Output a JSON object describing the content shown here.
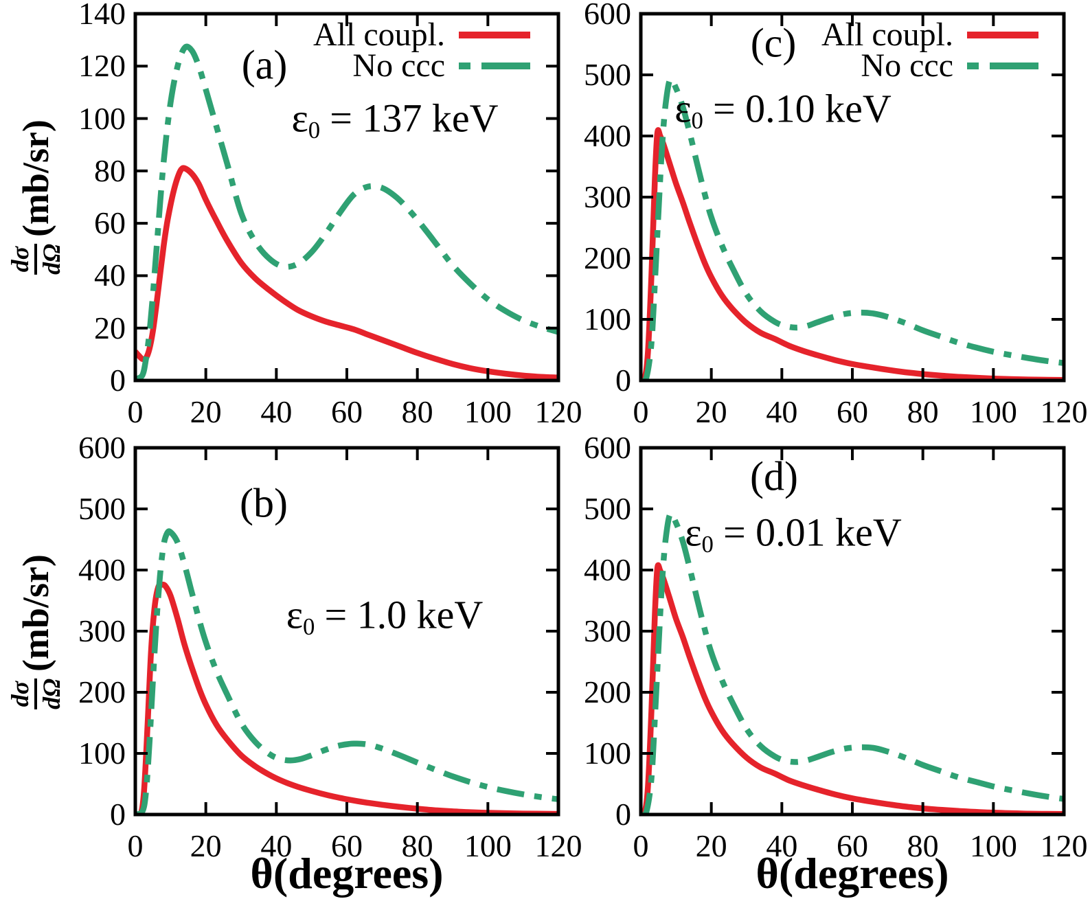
{
  "figure": {
    "background": "#ffffff",
    "axis_color": "#000000",
    "series_colors": {
      "all_coupl": "#e5232b",
      "no_ccc": "#2fa173"
    }
  },
  "legend": {
    "position": "top-right of panels a and c",
    "entries": [
      {
        "label": "All coupl.",
        "style": "solid",
        "color": "#e5232b"
      },
      {
        "label": "No ccc",
        "style": "dashdot",
        "color": "#2fa173"
      }
    ]
  },
  "axes": {
    "xlabel": "θ(degrees)",
    "ylabel": {
      "num": "dσ",
      "den": "dΩ",
      "units": "(mb/sr)"
    }
  },
  "chart_data": {
    "type": "line",
    "xlabel": "θ(degrees)",
    "ylabel": "dσ/dΩ (mb/sr)",
    "xlim": [
      0,
      120
    ],
    "xticks": [
      0,
      20,
      40,
      60,
      80,
      100,
      120
    ],
    "panels": {
      "a": {
        "label": "(a)",
        "annotation": {
          "symbol": "ε",
          "sub": "0",
          "rest": "= 137 keV"
        },
        "ylim": [
          0,
          140
        ],
        "yticks": [
          0,
          20,
          40,
          60,
          80,
          100,
          120,
          140
        ],
        "series": [
          {
            "name": "All coupl.",
            "color": "#e5232b",
            "style": "solid",
            "x": [
              0,
              1,
              2,
              3,
              4,
              5,
              6,
              7,
              8,
              9,
              10,
              11,
              12,
              13,
              14,
              16,
              18,
              20,
              23,
              26,
              30,
              34,
              38,
              42,
              46,
              50,
              54,
              58,
              62,
              66,
              70,
              75,
              80,
              85,
              90,
              95,
              100,
              105,
              110,
              115,
              120
            ],
            "y": [
              11,
              9.5,
              8.2,
              8.5,
              12,
              19,
              29,
              40,
              51,
              60,
              67,
              73,
              77.5,
              80.5,
              81,
              79,
              75,
              69,
              61,
              53.5,
              45,
              39,
              34.5,
              30.5,
              27,
              24.5,
              22.5,
              21,
              19.5,
              17.5,
              15.5,
              13,
              10.5,
              8.3,
              6.3,
              4.7,
              3.5,
              2.6,
              1.9,
              1.4,
              1.1
            ]
          },
          {
            "name": "No ccc",
            "color": "#2fa173",
            "style": "dashdot",
            "x": [
              0,
              2,
              3,
              4,
              5,
              6,
              8,
              10,
              12,
              14,
              16,
              18,
              20,
              23,
              26,
              30,
              34,
              38,
              42,
              46,
              50,
              54,
              58,
              62,
              66,
              70,
              74,
              78,
              82,
              86,
              90,
              95,
              100,
              105,
              110,
              115,
              120
            ],
            "y": [
              0.5,
              2,
              8,
              18,
              33,
              50,
              83,
              106,
              120,
              127,
              126,
              120,
              111,
              97,
              83,
              64,
              53,
              46.5,
              43.5,
              44.5,
              49,
              56,
              64,
              71,
              74,
              73.5,
              70,
              64.5,
              58,
              51,
              44,
              37,
              31,
              26.5,
              23,
              20.5,
              18.5
            ]
          }
        ]
      },
      "b": {
        "label": "(b)",
        "annotation": {
          "symbol": "ε",
          "sub": "0",
          "rest": "= 1.0 keV"
        },
        "ylim": [
          0,
          600
        ],
        "yticks": [
          0,
          100,
          200,
          300,
          400,
          500,
          600
        ],
        "series": [
          {
            "name": "All coupl.",
            "color": "#e5232b",
            "style": "solid",
            "x": [
              0,
              1.5,
              2.5,
              3.5,
              4.5,
              5.5,
              6.5,
              7.5,
              8.5,
              10,
              12,
              14,
              16,
              18,
              20,
              23,
              26,
              30,
              34,
              38,
              42,
              46,
              50,
              55,
              60,
              65,
              70,
              75,
              80,
              85,
              90,
              95,
              100,
              110,
              120
            ],
            "y": [
              0,
              0,
              40,
              150,
              270,
              340,
              372,
              376,
              374,
              358,
              320,
              277,
              241,
              208,
              180,
              147,
              123,
              97,
              79,
              65,
              54,
              45.5,
              38.5,
              31,
              25,
              20,
              16,
              12.5,
              9.5,
              7,
              5.2,
              3.8,
              2.8,
              1.6,
              1
            ]
          },
          {
            "name": "No ccc",
            "color": "#2fa173",
            "style": "dashdot",
            "x": [
              0,
              2,
              3,
              4,
              5,
              6,
              7,
              8,
              9,
              10,
              12,
              14,
              16,
              18,
              20,
              23,
              26,
              30,
              34,
              38,
              41,
              44,
              47,
              50,
              54,
              58,
              62,
              66,
              70,
              75,
              80,
              85,
              90,
              95,
              100,
              105,
              110,
              115,
              120
            ],
            "y": [
              0,
              5,
              35,
              115,
              220,
              315,
              390,
              440,
              460,
              462,
              445,
              408,
              364,
              321,
              282,
              235,
              197,
              150,
              119,
              99,
              91,
              88.5,
              91,
              97,
              106,
              113,
              116,
              114.5,
              108,
              97,
              85,
              73.5,
              62.5,
              53,
              45,
              38.5,
              33,
              28.5,
              25
            ]
          }
        ]
      },
      "c": {
        "label": "(c)",
        "annotation": {
          "symbol": "ε",
          "sub": "0",
          "rest": "= 0.10 keV"
        },
        "ylim": [
          0,
          600
        ],
        "yticks": [
          0,
          100,
          200,
          300,
          400,
          500,
          600
        ],
        "series": [
          {
            "name": "All coupl.",
            "color": "#e5232b",
            "style": "solid",
            "x": [
              0,
              1,
              2,
              3,
              4,
              4.7,
              5.5,
              6.5,
              8,
              10,
              12,
              14,
              16,
              18,
              20,
              23,
              26,
              30,
              34,
              38,
              42,
              46,
              50,
              55,
              60,
              65,
              70,
              75,
              80,
              85,
              90,
              100,
              110,
              120
            ],
            "y": [
              0,
              1,
              45,
              170,
              330,
              405,
              400,
              385,
              358,
              322,
              290,
              256,
              224,
              194,
              169,
              139,
              117,
              94,
              78,
              68,
              57,
              48.5,
              41.5,
              33.5,
              27,
              22,
              17.5,
              13.5,
              10.5,
              8,
              6,
              3.2,
              1.6,
              0.9
            ]
          },
          {
            "name": "No ccc",
            "color": "#2fa173",
            "style": "dashdot",
            "x": [
              0,
              1.5,
              3,
              4,
              5,
              6,
              7,
              8.3,
              10,
              12,
              14,
              16,
              18,
              20,
              23,
              26,
              30,
              34,
              38,
              41,
              44,
              47,
              50,
              54,
              58,
              62,
              66,
              70,
              75,
              80,
              85,
              90,
              95,
              100,
              105,
              110,
              115,
              120
            ],
            "y": [
              0,
              3,
              60,
              160,
              275,
              380,
              450,
              492,
              478,
              446,
              402,
              354,
              308,
              267,
              221,
              184,
              141,
              113,
              96,
              89,
              86.5,
              89,
              95,
              103,
              109,
              111,
              109.5,
              104,
              94,
              82,
              72,
              62,
              54,
              47,
              41.5,
              36.5,
              32,
              28.5
            ]
          }
        ]
      },
      "d": {
        "label": "(d)",
        "annotation": {
          "symbol": "ε",
          "sub": "0",
          "rest": "= 0.01 keV"
        },
        "ylim": [
          0,
          600
        ],
        "yticks": [
          0,
          100,
          200,
          300,
          400,
          500,
          600
        ],
        "series": [
          {
            "name": "All coupl.",
            "color": "#e5232b",
            "style": "solid",
            "x": [
              0,
              1,
              2,
              3,
              4,
              4.7,
              5.5,
              6.5,
              8,
              10,
              12,
              14,
              16,
              18,
              20,
              23,
              26,
              30,
              34,
              38,
              42,
              46,
              50,
              55,
              60,
              65,
              70,
              75,
              80,
              85,
              90,
              100,
              110,
              120
            ],
            "y": [
              0,
              1,
              44,
              168,
              328,
              403,
              399,
              384,
              357,
              320,
              289,
              255,
              223,
              193,
              168,
              138,
              116,
              93,
              77,
              67,
              56,
              48,
              41,
              33,
              26.5,
              21.5,
              17,
              13,
              10,
              7.8,
              5.8,
              3,
              1.5,
              0.8
            ]
          },
          {
            "name": "No ccc",
            "color": "#2fa173",
            "style": "dashdot",
            "x": [
              0,
              1.5,
              3,
              4,
              5,
              6,
              7,
              8.3,
              10,
              12,
              14,
              16,
              18,
              20,
              23,
              26,
              30,
              34,
              38,
              41,
              44,
              47,
              50,
              54,
              58,
              62,
              66,
              70,
              75,
              80,
              85,
              90,
              95,
              100,
              105,
              110,
              115,
              120
            ],
            "y": [
              0,
              3,
              58,
              158,
              272,
              378,
              448,
              491,
              477,
              445,
              400,
              352,
              306,
              265,
              220,
              183,
              140,
              112,
              95,
              88,
              86,
              88.5,
              94,
              102,
              108,
              110,
              109,
              103,
              93,
              81,
              71,
              61,
              53.5,
              46,
              40,
              34.5,
              29.5,
              25.5
            ]
          }
        ]
      }
    }
  }
}
